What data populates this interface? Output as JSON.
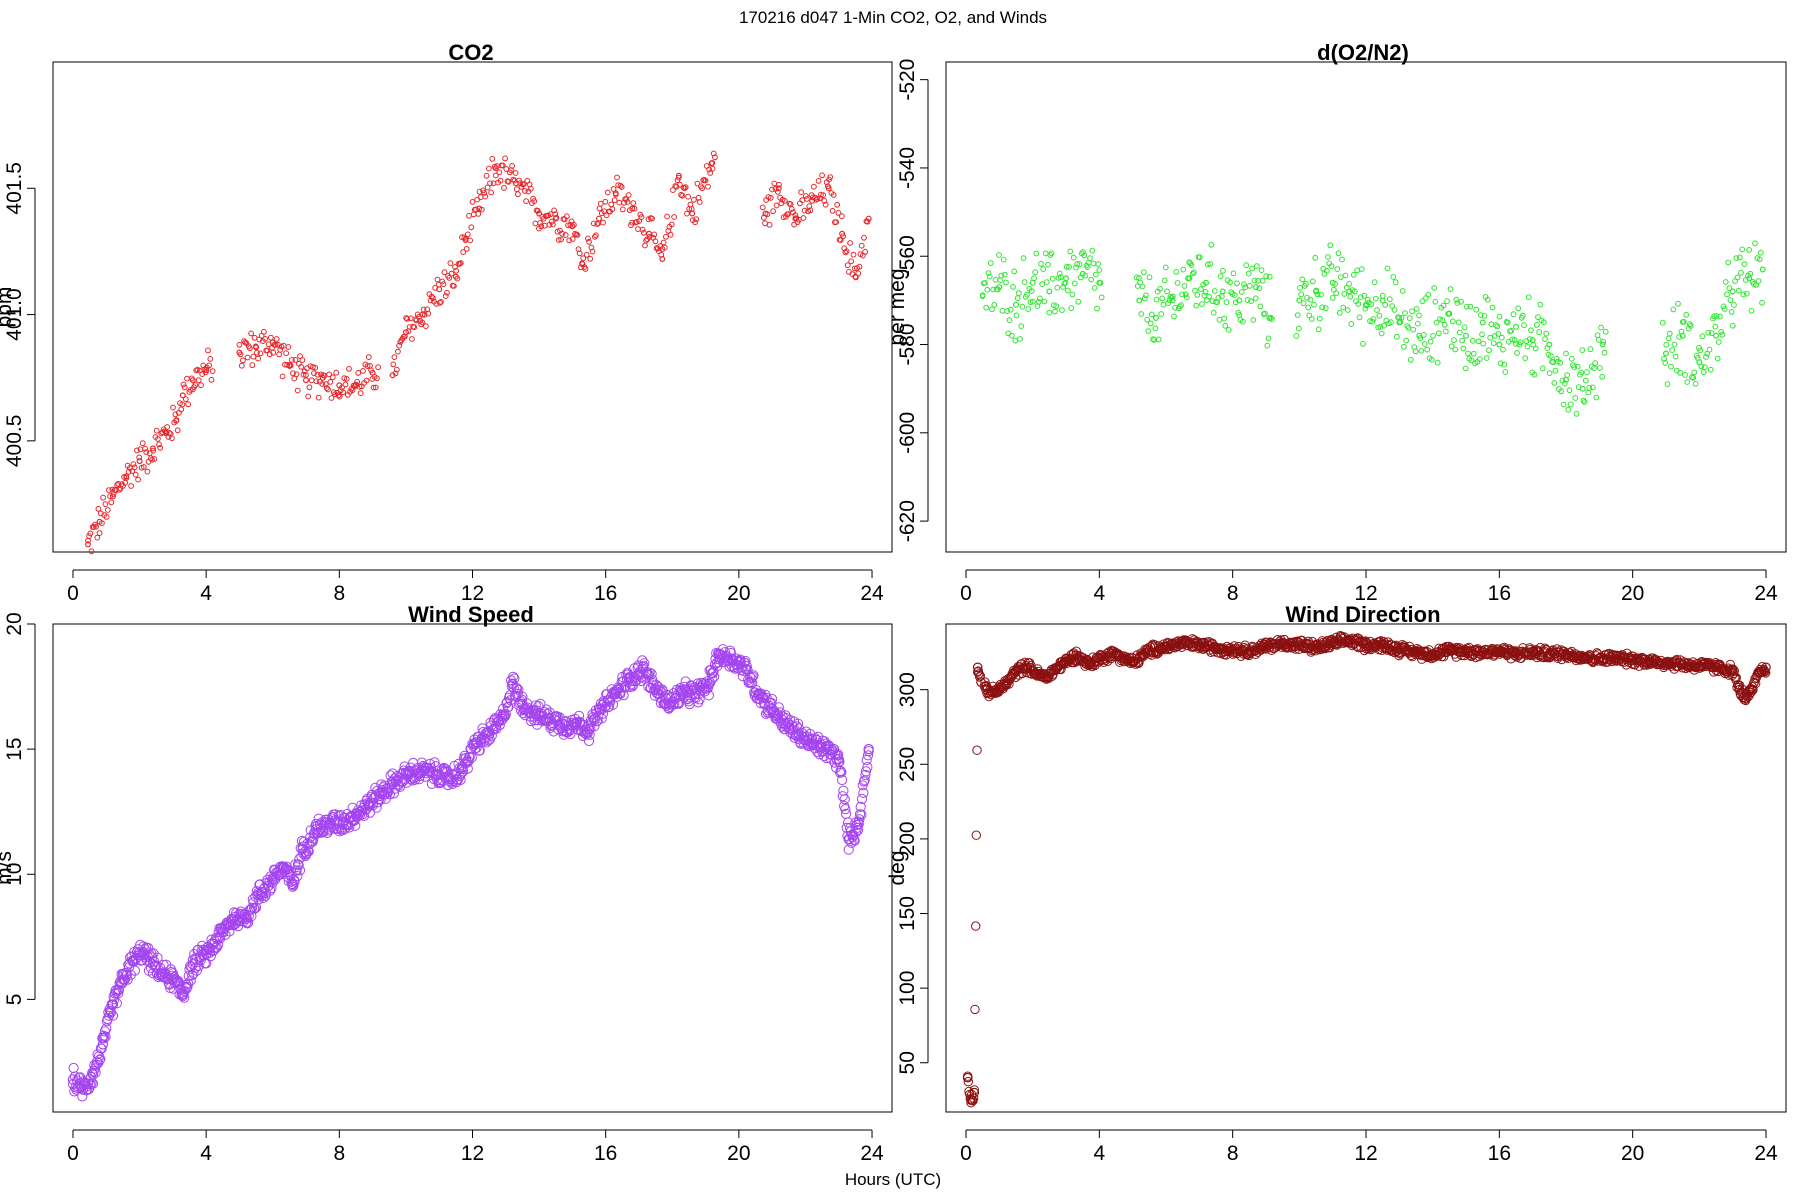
{
  "figure": {
    "suptitle": "170216   d047   1-Min CO2, O2, and Winds",
    "xlabel": "Hours (UTC)"
  },
  "chart_data": [
    {
      "type": "scatter",
      "title": "CO2",
      "xlabel": "",
      "ylabel": "ppm",
      "color": "#e8262a",
      "xlim": [
        -0.6,
        24.6
      ],
      "ylim": [
        400.06,
        402.0
      ],
      "xticks": [
        0,
        4,
        8,
        12,
        16,
        20,
        24
      ],
      "yticks": [
        400.5,
        401.0,
        401.5
      ],
      "ytick_labels": [
        "400.5",
        "401.0",
        "401.5"
      ],
      "grid": false,
      "series": [
        {
          "x": [
            0.45,
            0.8,
            1.2,
            1.6,
            2.0,
            2.4,
            2.8,
            3.1,
            3.3,
            3.6,
            4.0,
            5.0,
            5.5,
            6.0,
            6.5,
            7.0,
            7.5,
            8.0,
            8.5,
            9.0,
            9.6,
            10.0,
            10.5,
            11.0,
            11.5,
            11.8,
            12.2,
            12.7,
            13.3,
            14.0,
            14.5,
            15.0,
            15.3,
            15.8,
            16.3,
            16.8,
            17.3,
            17.7,
            18.2,
            18.6,
            19.2,
            20.8,
            21.2,
            21.7,
            22.2,
            22.7,
            23.1,
            23.5,
            23.9
          ],
          "y": [
            400.09,
            400.18,
            400.28,
            400.36,
            400.42,
            400.47,
            400.53,
            400.58,
            400.68,
            400.74,
            400.78,
            400.85,
            400.87,
            400.89,
            400.8,
            400.74,
            400.75,
            400.72,
            400.72,
            400.77,
            400.76,
            400.93,
            401.0,
            401.1,
            401.15,
            401.3,
            401.42,
            401.58,
            401.52,
            401.4,
            401.38,
            401.35,
            401.2,
            401.38,
            401.48,
            401.42,
            401.32,
            401.22,
            401.55,
            401.4,
            401.6,
            401.4,
            401.5,
            401.38,
            401.45,
            401.5,
            401.32,
            401.15,
            401.38
          ]
        }
      ]
    },
    {
      "type": "scatter",
      "title": "d(O2/N2)",
      "xlabel": "",
      "ylabel": "per meg",
      "color": "#2ee62e",
      "xlim": [
        -0.6,
        24.6
      ],
      "ylim": [
        -627,
        -516
      ],
      "xticks": [
        0,
        4,
        8,
        12,
        16,
        20,
        24
      ],
      "yticks": [
        -620,
        -600,
        -580,
        -560,
        -540,
        -520
      ],
      "ytick_labels": [
        "-620",
        "-600",
        "-580",
        "-560",
        "-540",
        "-520"
      ],
      "grid": false,
      "series": [
        {
          "x": [
            0.5,
            1.0,
            1.5,
            2.0,
            2.5,
            3.0,
            3.5,
            4.0,
            5.2,
            5.7,
            6.2,
            6.7,
            7.2,
            7.7,
            8.2,
            8.7,
            9.1,
            10.0,
            10.5,
            11.0,
            11.5,
            12.0,
            12.5,
            13.0,
            13.6,
            14.5,
            15.0,
            15.5,
            16.0,
            16.5,
            17.0,
            17.5,
            18.0,
            18.5,
            19.1,
            21.0,
            21.5,
            22.0,
            22.5,
            23.0,
            23.5,
            23.9
          ],
          "y": [
            -569,
            -567,
            -571,
            -566,
            -568,
            -565,
            -564,
            -566,
            -570,
            -574,
            -570,
            -565,
            -566,
            -568,
            -570,
            -567,
            -574,
            -570,
            -568,
            -566,
            -568,
            -571,
            -570,
            -575,
            -578,
            -573,
            -578,
            -575,
            -580,
            -576,
            -579,
            -580,
            -588,
            -590,
            -580,
            -582,
            -578,
            -584,
            -578,
            -568,
            -565,
            -563
          ]
        }
      ]
    },
    {
      "type": "scatter",
      "title": "Wind Speed",
      "xlabel": "",
      "ylabel": "m/s",
      "color": "#a445f0",
      "xlim": [
        -0.6,
        24.6
      ],
      "ylim": [
        0.5,
        20.0
      ],
      "xticks": [
        0,
        4,
        8,
        12,
        16,
        20,
        24
      ],
      "yticks": [
        5,
        10,
        15,
        20
      ],
      "ytick_labels": [
        "5",
        "10",
        "15",
        "20"
      ],
      "grid": false,
      "series": [
        {
          "x": [
            0.0,
            0.3,
            0.6,
            0.9,
            1.2,
            1.5,
            1.8,
            2.1,
            2.4,
            2.7,
            3.0,
            3.3,
            3.6,
            4.0,
            4.4,
            4.8,
            5.2,
            5.6,
            6.0,
            6.3,
            6.6,
            6.9,
            7.3,
            7.7,
            8.1,
            8.5,
            8.9,
            9.3,
            9.7,
            10.1,
            10.5,
            10.9,
            11.3,
            11.7,
            12.1,
            12.5,
            12.9,
            13.2,
            13.5,
            13.9,
            14.3,
            14.7,
            15.1,
            15.5,
            15.9,
            16.3,
            16.7,
            17.1,
            17.5,
            17.9,
            18.3,
            18.7,
            19.1,
            19.4,
            19.8,
            20.2,
            20.6,
            21.0,
            21.4,
            21.8,
            22.2,
            22.6,
            23.0,
            23.3,
            23.6,
            23.9
          ],
          "y": [
            1.8,
            1.4,
            2.0,
            3.2,
            4.8,
            5.8,
            6.5,
            6.9,
            6.4,
            6.0,
            5.8,
            5.2,
            6.4,
            6.8,
            7.5,
            8.2,
            8.3,
            9.2,
            9.8,
            10.3,
            9.6,
            11.0,
            11.8,
            12.0,
            12.1,
            12.4,
            12.8,
            13.3,
            13.7,
            14.0,
            14.1,
            14.0,
            13.8,
            14.2,
            15.2,
            15.6,
            16.2,
            17.6,
            16.8,
            16.4,
            16.2,
            16.0,
            16.0,
            15.8,
            16.6,
            17.2,
            17.8,
            18.2,
            17.4,
            16.8,
            17.2,
            17.2,
            17.6,
            18.8,
            18.6,
            18.2,
            17.2,
            16.6,
            16.0,
            15.6,
            15.2,
            15.0,
            14.6,
            11.4,
            12.0,
            15.0
          ]
        }
      ]
    },
    {
      "type": "scatter",
      "title": "Wind Direction",
      "xlabel": "",
      "ylabel": "deg",
      "color": "#8b1010",
      "xlim": [
        -0.6,
        24.6
      ],
      "ylim": [
        17,
        344
      ],
      "xticks": [
        0,
        4,
        8,
        12,
        16,
        20,
        24
      ],
      "yticks": [
        50,
        100,
        150,
        200,
        250,
        300
      ],
      "ytick_labels": [
        "50",
        "100",
        "150",
        "200",
        "250",
        "300"
      ],
      "grid": false,
      "series": [
        {
          "x": [
            0.05,
            0.15,
            0.25,
            0.35,
            0.45,
            0.6,
            0.8,
            1.0,
            1.2,
            1.5,
            1.8,
            2.1,
            2.4,
            2.7,
            3.0,
            3.3,
            3.7,
            4.1,
            4.5,
            5.0,
            5.5,
            6.0,
            6.5,
            7.0,
            7.5,
            8.0,
            8.5,
            9.0,
            9.5,
            10.0,
            10.5,
            11.0,
            11.5,
            12.0,
            12.5,
            13.0,
            13.5,
            14.0,
            14.5,
            15.0,
            15.5,
            16.0,
            16.5,
            17.0,
            17.5,
            18.0,
            18.5,
            19.0,
            19.5,
            20.0,
            20.5,
            21.0,
            21.5,
            22.0,
            22.5,
            23.0,
            23.2,
            23.4,
            23.6,
            23.8,
            24.0
          ],
          "y": [
            40,
            25,
            30,
            315,
            305,
            300,
            298,
            300,
            304,
            312,
            316,
            311,
            308,
            314,
            319,
            323,
            317,
            322,
            324,
            318,
            326,
            329,
            331,
            330,
            328,
            327,
            326,
            329,
            331,
            330,
            328,
            331,
            333,
            330,
            330,
            327,
            325,
            324,
            326,
            326,
            325,
            326,
            324,
            325,
            324,
            324,
            322,
            321,
            321,
            320,
            319,
            318,
            317,
            316,
            315,
            313,
            300,
            294,
            300,
            312,
            315
          ]
        }
      ]
    }
  ]
}
